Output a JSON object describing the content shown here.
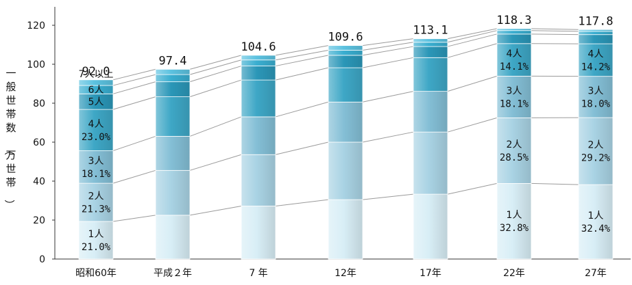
{
  "chart_data": {
    "type": "bar",
    "stacked": true,
    "ylabel": "一般世帯数（万世帯）",
    "ylim": [
      0,
      120
    ],
    "yticks": [
      0,
      20,
      40,
      60,
      80,
      100,
      120
    ],
    "grid": false,
    "legend": "none",
    "categories": [
      "昭和60年",
      "平成２年",
      "7 年",
      "12年",
      "17年",
      "22年",
      "27年"
    ],
    "totals": [
      "92.0",
      "97.4",
      "104.6",
      "109.6",
      "113.1",
      "118.3",
      "117.8"
    ],
    "series": [
      {
        "name": "1人",
        "values": [
          19.3,
          22.5,
          27.2,
          30.5,
          33.3,
          38.8,
          38.2
        ]
      },
      {
        "name": "2人",
        "values": [
          19.6,
          23.0,
          26.4,
          29.5,
          31.9,
          33.7,
          34.4
        ]
      },
      {
        "name": "3人",
        "values": [
          16.7,
          17.5,
          19.4,
          20.6,
          20.9,
          21.4,
          21.2
        ]
      },
      {
        "name": "4人",
        "values": [
          21.2,
          20.3,
          18.9,
          17.6,
          17.3,
          16.7,
          16.7
        ]
      },
      {
        "name": "5人",
        "values": [
          8.0,
          7.7,
          7.2,
          6.4,
          5.7,
          4.9,
          4.7
        ]
      },
      {
        "name": "6人",
        "values": [
          4.3,
          3.7,
          3.1,
          2.6,
          2.2,
          1.8,
          1.7
        ]
      },
      {
        "name": "7人以上",
        "values": [
          2.9,
          2.7,
          2.4,
          2.4,
          1.8,
          1.0,
          0.9
        ]
      }
    ],
    "segment_labels": [
      {
        "category": 0,
        "series": 0,
        "lines": [
          "1人",
          "21.0%"
        ]
      },
      {
        "category": 0,
        "series": 1,
        "lines": [
          "2人",
          "21.3%"
        ]
      },
      {
        "category": 0,
        "series": 2,
        "lines": [
          "3人",
          "18.1%"
        ]
      },
      {
        "category": 0,
        "series": 3,
        "lines": [
          "4人",
          "23.0%"
        ]
      },
      {
        "category": 0,
        "series": 4,
        "lines": [
          "5人"
        ]
      },
      {
        "category": 0,
        "series": 5,
        "lines": [
          "6人"
        ]
      },
      {
        "category": 0,
        "series": 6,
        "lines": [
          "7人以上"
        ],
        "position": "above"
      },
      {
        "category": 5,
        "series": 0,
        "lines": [
          "1人",
          "32.8%"
        ]
      },
      {
        "category": 5,
        "series": 1,
        "lines": [
          "2人",
          "28.5%"
        ]
      },
      {
        "category": 5,
        "series": 2,
        "lines": [
          "3人",
          "18.1%"
        ]
      },
      {
        "category": 5,
        "series": 3,
        "lines": [
          "4人",
          "14.1%"
        ]
      },
      {
        "category": 6,
        "series": 0,
        "lines": [
          "1人",
          "32.4%"
        ]
      },
      {
        "category": 6,
        "series": 1,
        "lines": [
          "2人",
          "29.2%"
        ]
      },
      {
        "category": 6,
        "series": 2,
        "lines": [
          "3人",
          "18.0%"
        ]
      },
      {
        "category": 6,
        "series": 3,
        "lines": [
          "4人",
          "14.2%"
        ]
      }
    ],
    "colors": [
      "#d8eef6",
      "#a9d3e4",
      "#84bfd6",
      "#3ea7c6",
      "#2b97b8",
      "#3aaed0",
      "#5cc2e0"
    ]
  }
}
